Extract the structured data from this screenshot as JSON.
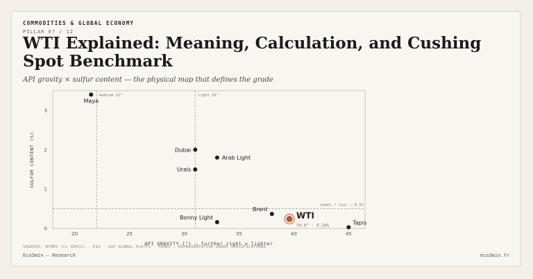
{
  "header": {
    "kicker": "COMMODITIES & GLOBAL ECONOMY",
    "pillar": "PILLAR 07 / 12",
    "title": "WTI Explained: Meaning, Calculation, and Cushing Spot Benchmark",
    "subtitle": "API gravity × sulfur content — the physical map that defines the grade"
  },
  "footer": {
    "sources": "SOURCES: NYMEX (CL SPECS) · EIA · S&P GLOBAL PLATTS · PEMEX — REPRESENTATIVE GRADE SPECIFICATIONS",
    "left": "Eco3min — Research",
    "right": "eco3min.fr"
  },
  "colors": {
    "highlight": "#c0532f",
    "point": "#1b1b1b",
    "grid": "#a8a39a"
  },
  "chart_data": {
    "type": "scatter",
    "xlabel": "API GRAVITY (°) — further right = lighter",
    "ylabel": "SULFUR CONTENT (%)",
    "xlim": [
      18,
      46.5
    ],
    "ylim": [
      0,
      3.5
    ],
    "xticks": [
      20,
      25,
      30,
      35,
      40,
      45
    ],
    "yticks": [
      0,
      1,
      2,
      3
    ],
    "grid": false,
    "reference_lines": [
      {
        "axis": "x",
        "value": 22,
        "label": "medium 22°"
      },
      {
        "axis": "x",
        "value": 31,
        "label": "light 31°"
      },
      {
        "axis": "y",
        "value": 0.5,
        "label": "sweet / sour — 0.5%"
      }
    ],
    "points": [
      {
        "name": "Maya",
        "x": 21.5,
        "y": 3.4
      },
      {
        "name": "Dubai",
        "x": 31,
        "y": 2.0
      },
      {
        "name": "Arab Light",
        "x": 33,
        "y": 1.8
      },
      {
        "name": "Urals",
        "x": 31,
        "y": 1.5
      },
      {
        "name": "Brent",
        "x": 38,
        "y": 0.37
      },
      {
        "name": "Bonny Light",
        "x": 33,
        "y": 0.16
      },
      {
        "name": "Tapis",
        "x": 45,
        "y": 0.03
      },
      {
        "name": "WTI",
        "x": 39.6,
        "y": 0.24,
        "highlight": true,
        "note": "39.6° · 0.24%"
      }
    ]
  }
}
